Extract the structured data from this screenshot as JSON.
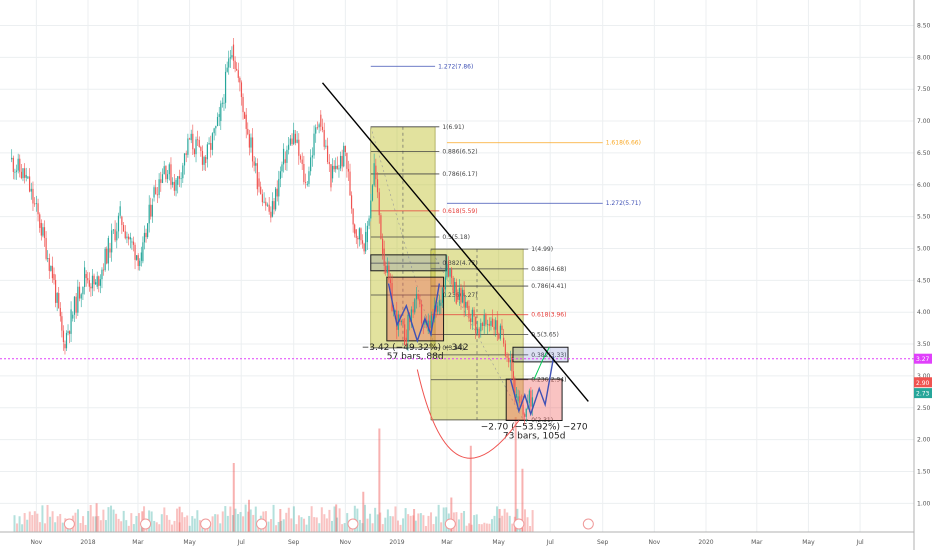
{
  "chart_data": {
    "type": "candlestick",
    "y_axis": {
      "scale": "linear",
      "range": [
        0.55,
        8.9
      ],
      "ticks": [
        "8.50",
        "8.00",
        "7.50",
        "7.00",
        "6.50",
        "6.00",
        "5.50",
        "5.00",
        "4.50",
        "4.00",
        "3.50",
        "3.00",
        "2.50",
        "2.00",
        "1.50",
        "1.00"
      ],
      "tick_values": [
        8.5,
        8.0,
        7.5,
        7.0,
        6.5,
        6.0,
        5.5,
        5.0,
        4.5,
        4.0,
        3.5,
        3.0,
        2.5,
        2.0,
        1.5,
        1.0
      ]
    },
    "x_axis": {
      "ticks": [
        "Nov",
        "2018",
        "Mar",
        "May",
        "Jul",
        "Sep",
        "Nov",
        "2019",
        "Mar",
        "May",
        "Jul",
        "Sep",
        "Nov",
        "2020",
        "Mar",
        "May",
        "Jul"
      ],
      "tick_dates": [
        "2017-11-01",
        "2018-01-01",
        "2018-03-01",
        "2018-05-01",
        "2018-07-01",
        "2018-09-01",
        "2018-11-01",
        "2019-01-01",
        "2019-03-01",
        "2019-05-01",
        "2019-07-01",
        "2019-09-01",
        "2019-11-01",
        "2020-01-01",
        "2020-03-01",
        "2020-05-01",
        "2020-07-01"
      ]
    },
    "price_path": [
      {
        "date": "2017-10-01",
        "value": 6.4
      },
      {
        "date": "2017-10-20",
        "value": 6.1
      },
      {
        "date": "2017-11-05",
        "value": 5.4
      },
      {
        "date": "2017-11-20",
        "value": 4.6
      },
      {
        "date": "2017-12-03",
        "value": 3.5
      },
      {
        "date": "2017-12-12",
        "value": 3.9
      },
      {
        "date": "2017-12-28",
        "value": 4.6
      },
      {
        "date": "2018-01-10",
        "value": 4.4
      },
      {
        "date": "2018-01-25",
        "value": 5.0
      },
      {
        "date": "2018-02-08",
        "value": 5.5
      },
      {
        "date": "2018-02-20",
        "value": 5.1
      },
      {
        "date": "2018-03-05",
        "value": 4.8
      },
      {
        "date": "2018-03-18",
        "value": 5.8
      },
      {
        "date": "2018-04-01",
        "value": 6.3
      },
      {
        "date": "2018-04-15",
        "value": 6.0
      },
      {
        "date": "2018-05-01",
        "value": 6.7
      },
      {
        "date": "2018-05-20",
        "value": 6.4
      },
      {
        "date": "2018-06-05",
        "value": 7.0
      },
      {
        "date": "2018-06-20",
        "value": 8.2
      },
      {
        "date": "2018-07-05",
        "value": 7.1
      },
      {
        "date": "2018-07-20",
        "value": 6.1
      },
      {
        "date": "2018-08-05",
        "value": 5.5
      },
      {
        "date": "2018-08-20",
        "value": 6.4
      },
      {
        "date": "2018-09-01",
        "value": 6.8
      },
      {
        "date": "2018-09-15",
        "value": 6.0
      },
      {
        "date": "2018-10-01",
        "value": 7.1
      },
      {
        "date": "2018-10-15",
        "value": 6.1
      },
      {
        "date": "2018-11-01",
        "value": 6.5
      },
      {
        "date": "2018-11-12",
        "value": 5.3
      },
      {
        "date": "2018-11-25",
        "value": 5.1
      },
      {
        "date": "2018-12-05",
        "value": 6.3
      },
      {
        "date": "2018-12-15",
        "value": 5.0
      },
      {
        "date": "2018-12-28",
        "value": 4.0
      },
      {
        "date": "2019-01-10",
        "value": 3.6
      },
      {
        "date": "2019-01-22",
        "value": 4.2
      },
      {
        "date": "2019-02-05",
        "value": 3.7
      },
      {
        "date": "2019-02-20",
        "value": 4.1
      },
      {
        "date": "2019-03-01",
        "value": 4.8
      },
      {
        "date": "2019-03-12",
        "value": 4.3
      },
      {
        "date": "2019-03-25",
        "value": 4.1
      },
      {
        "date": "2019-04-08",
        "value": 3.7
      },
      {
        "date": "2019-04-22",
        "value": 3.9
      },
      {
        "date": "2019-05-05",
        "value": 3.6
      },
      {
        "date": "2019-05-15",
        "value": 3.3
      },
      {
        "date": "2019-05-22",
        "value": 2.6
      },
      {
        "date": "2019-05-30",
        "value": 2.4
      },
      {
        "date": "2019-06-10",
        "value": 2.7
      }
    ],
    "projection_path": [
      {
        "date": "2019-06-12",
        "value": 2.95
      },
      {
        "date": "2019-06-22",
        "value": 3.25
      },
      {
        "date": "2019-06-30",
        "value": 3.45
      }
    ],
    "current_price": {
      "value": 2.73,
      "label": "2.73",
      "color": "#26a69a"
    },
    "second_price": {
      "value": 2.9,
      "label": "2.90",
      "color": "#ef5350"
    },
    "horizontal_line": {
      "value": 3.27,
      "label": "3.27",
      "color": "#e040fb",
      "style": "dotted"
    },
    "trendline": {
      "start": {
        "date": "2018-10-05",
        "value": 7.6
      },
      "end": {
        "date": "2019-08-15",
        "value": 2.6
      },
      "color": "#000000"
    },
    "fib_sets": [
      {
        "range": {
          "start": "2018-12-01",
          "end": "2019-02-15"
        },
        "label_date": "2019-02-20",
        "levels": [
          {
            "label": "1(6.91)",
            "value": 6.91,
            "color": "#444444"
          },
          {
            "label": "0.886(6.52)",
            "value": 6.52,
            "color": "#444444"
          },
          {
            "label": "0.786(6.17)",
            "value": 6.17,
            "color": "#444444"
          },
          {
            "label": "0.618(5.59)",
            "value": 5.59,
            "color": "#e53935"
          },
          {
            "label": "0.5(5.18)",
            "value": 5.18,
            "color": "#444444"
          },
          {
            "label": "0.382(4.77)",
            "value": 4.77,
            "color": "#444444"
          },
          {
            "label": "0.236(4.27)",
            "value": 4.27,
            "color": "#444444"
          },
          {
            "label": "0(3.44)",
            "value": 3.44,
            "color": "#444444"
          }
        ],
        "extensions": [
          {
            "label": "1.272(7.86)",
            "value": 7.86,
            "color": "#3f51b5",
            "from": "2018-12-01",
            "to": "2019-02-15"
          },
          {
            "label": "1.272(5.71)",
            "value": 5.71,
            "color": "#3f51b5",
            "from": "2019-03-01",
            "to": "2019-09-01"
          },
          {
            "label": "1.618(6.66)",
            "value": 6.66,
            "color": "#f9a825",
            "from": "2019-03-01",
            "to": "2019-09-01"
          }
        ]
      },
      {
        "range": {
          "start": "2019-02-10",
          "end": "2019-05-30"
        },
        "label_date": "2019-06-05",
        "levels": [
          {
            "label": "1(4.99)",
            "value": 4.99,
            "color": "#444444"
          },
          {
            "label": "0.886(4.68)",
            "value": 4.68,
            "color": "#444444"
          },
          {
            "label": "0.786(4.41)",
            "value": 4.41,
            "color": "#444444"
          },
          {
            "label": "0.618(3.96)",
            "value": 3.96,
            "color": "#e53935"
          },
          {
            "label": "0.5(3.65)",
            "value": 3.65,
            "color": "#444444"
          },
          {
            "label": "0.382(3.33)",
            "value": 3.33,
            "color": "#444444"
          },
          {
            "label": "0.236(2.94)",
            "value": 2.94,
            "color": "#444444"
          },
          {
            "label": "0(2.31)",
            "value": 2.31,
            "color": "#444444"
          }
        ]
      }
    ],
    "zones": [
      {
        "start": "2018-12-01",
        "end": "2019-02-28",
        "top": 4.9,
        "bottom": 4.65,
        "color": "#3f51b5"
      },
      {
        "start": "2019-05-18",
        "end": "2019-07-22",
        "top": 3.45,
        "bottom": 3.22,
        "color": "#3f51b5"
      }
    ],
    "measure_boxes": [
      {
        "start": "2018-12-20",
        "end": "2019-02-25",
        "top": 4.55,
        "bottom": 3.55,
        "main": "−3.42 (−49.32%) −342",
        "sub": "57 bars, 88d"
      },
      {
        "start": "2019-05-10",
        "end": "2019-07-15",
        "top": 2.95,
        "bottom": 2.3,
        "main": "−2.70 (−53.92%) −270",
        "sub": "73 bars, 105d"
      }
    ],
    "wave_patterns": [
      [
        {
          "date": "2018-12-22",
          "value": 4.45
        },
        {
          "date": "2019-01-01",
          "value": 3.8
        },
        {
          "date": "2019-01-12",
          "value": 4.1
        },
        {
          "date": "2019-01-25",
          "value": 3.55
        },
        {
          "date": "2019-02-03",
          "value": 3.9
        },
        {
          "date": "2019-02-10",
          "value": 3.65
        },
        {
          "date": "2019-02-20",
          "value": 4.45
        }
      ],
      [
        {
          "date": "2019-05-15",
          "value": 2.95
        },
        {
          "date": "2019-05-25",
          "value": 2.45
        },
        {
          "date": "2019-06-01",
          "value": 2.7
        },
        {
          "date": "2019-06-08",
          "value": 2.4
        },
        {
          "date": "2019-06-18",
          "value": 2.8
        },
        {
          "date": "2019-06-25",
          "value": 2.55
        },
        {
          "date": "2019-07-05",
          "value": 3.3
        }
      ]
    ],
    "volume_bars": [
      {
        "date": "2018-01-10",
        "value": 0.25
      },
      {
        "date": "2018-03-05",
        "value": 0.18
      },
      {
        "date": "2018-04-18",
        "value": 0.22
      },
      {
        "date": "2018-06-21",
        "value": 0.6
      },
      {
        "date": "2018-07-09",
        "value": 0.28
      },
      {
        "date": "2018-08-15",
        "value": 0.2
      },
      {
        "date": "2018-10-20",
        "value": 0.24
      },
      {
        "date": "2018-11-21",
        "value": 0.35
      },
      {
        "date": "2018-12-10",
        "value": 0.9
      },
      {
        "date": "2019-01-20",
        "value": 0.2
      },
      {
        "date": "2019-03-05",
        "value": 0.3
      },
      {
        "date": "2019-03-28",
        "value": 0.75
      },
      {
        "date": "2019-05-01",
        "value": 0.2
      },
      {
        "date": "2019-05-20",
        "value": 1.0
      },
      {
        "date": "2019-05-28",
        "value": 0.55
      }
    ]
  }
}
